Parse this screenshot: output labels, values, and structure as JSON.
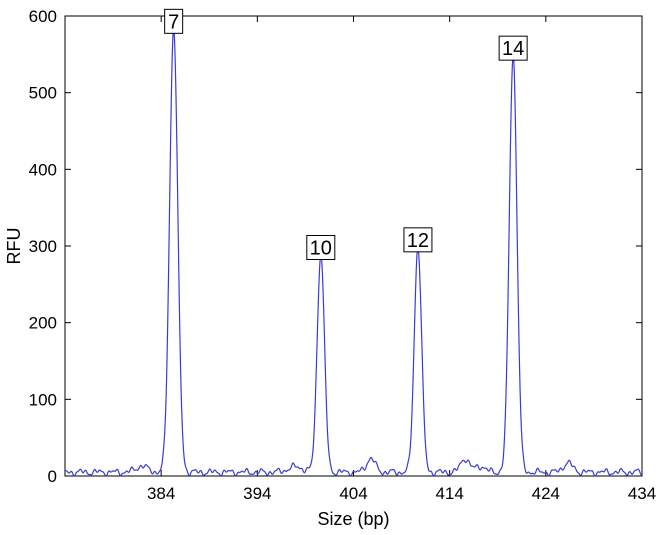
{
  "chart_data": {
    "type": "line",
    "title": "",
    "xlabel": "Size (bp)",
    "ylabel": "RFU",
    "xlim": [
      374,
      434
    ],
    "ylim": [
      0,
      600
    ],
    "x_ticks": [
      384,
      394,
      404,
      414,
      424,
      434
    ],
    "y_ticks": [
      0,
      100,
      200,
      300,
      400,
      500,
      600
    ],
    "grid": false,
    "legend": "none",
    "line_color": "#3a3ad6",
    "baseline_rfu": 5,
    "peaks": [
      {
        "label": "7",
        "x": 385.3,
        "height": 580,
        "width": 0.42
      },
      {
        "label": "10",
        "x": 400.6,
        "height": 285,
        "width": 0.38
      },
      {
        "label": "12",
        "x": 410.7,
        "height": 295,
        "width": 0.38
      },
      {
        "label": "14",
        "x": 420.6,
        "height": 545,
        "width": 0.4
      }
    ],
    "minor_bumps": [
      {
        "x": 382.0,
        "height": 8,
        "width": 0.6
      },
      {
        "x": 398.0,
        "height": 7,
        "width": 0.8
      },
      {
        "x": 405.8,
        "height": 18,
        "width": 0.45
      },
      {
        "x": 415.6,
        "height": 18,
        "width": 0.45
      },
      {
        "x": 417.2,
        "height": 8,
        "width": 0.5
      },
      {
        "x": 426.3,
        "height": 12,
        "width": 0.5
      }
    ]
  }
}
